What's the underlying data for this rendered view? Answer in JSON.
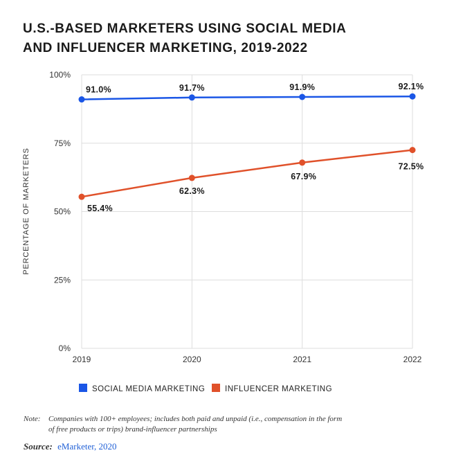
{
  "title_lines": [
    "U.S.-BASED MARKETERS USING SOCIAL MEDIA",
    "AND INFLUENCER MARKETING, 2019-2022"
  ],
  "chart_data": {
    "type": "line",
    "x": [
      "2019",
      "2020",
      "2021",
      "2022"
    ],
    "series": [
      {
        "name": "SOCIAL MEDIA MARKETING",
        "color": "#1a56e6",
        "values": [
          91.0,
          91.7,
          91.9,
          92.1
        ],
        "labels": [
          "91.0%",
          "91.7%",
          "91.9%",
          "92.1%"
        ]
      },
      {
        "name": "INFLUENCER MARKETING",
        "color": "#e0512a",
        "values": [
          55.4,
          62.3,
          67.9,
          72.5
        ],
        "labels": [
          "55.4%",
          "62.3%",
          "67.9%",
          "72.5%"
        ]
      }
    ],
    "ylabel": "PERCENTAGE OF MARKETERS",
    "ylim": [
      0,
      100
    ],
    "yticks": [
      0,
      25,
      50,
      75,
      100
    ],
    "ytick_labels": [
      "0%",
      "25%",
      "50%",
      "75%",
      "100%"
    ],
    "grid": true,
    "legend": "bottom"
  },
  "note": {
    "label": "Note:",
    "text": "Companies with 100+ employees; includes both paid and unpaid (i.e., compensation in the form of free products or trips) brand-influencer partnerships"
  },
  "source": {
    "label": "Source:",
    "value": "eMarketer, 2020"
  }
}
